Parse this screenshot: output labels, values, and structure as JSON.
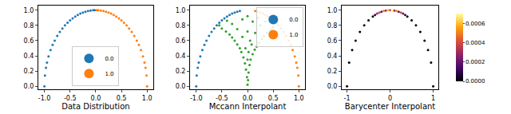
{
  "chart_data": [
    {
      "type": "scatter",
      "xlabel": "Data Distribution",
      "legend": "lower center",
      "xlim": [
        -1.12,
        1.12
      ],
      "ylim": [
        -0.04,
        1.06
      ],
      "xticks": [
        {
          "value": -1,
          "label": "-1.0"
        },
        {
          "value": -0.5,
          "label": "-0.5"
        },
        {
          "value": 0,
          "label": "0.0"
        },
        {
          "value": 0.5,
          "label": "0.5"
        },
        {
          "value": 1,
          "label": "1.0"
        }
      ],
      "yticks": [
        {
          "value": 0,
          "label": "0.0"
        },
        {
          "value": 0.2,
          "label": "0.2"
        },
        {
          "value": 0.4,
          "label": "0.4"
        },
        {
          "value": 0.6,
          "label": "0.6"
        },
        {
          "value": 0.8,
          "label": "0.8"
        },
        {
          "value": 1,
          "label": "1.0"
        }
      ],
      "series": [
        {
          "name": "0.0",
          "color": "#1f77b4",
          "x": [
            -1.0,
            -0.99,
            -0.97,
            -0.95,
            -0.92,
            -0.88,
            -0.84,
            -0.8,
            -0.75,
            -0.7,
            -0.65,
            -0.6,
            -0.55,
            -0.5,
            -0.45,
            -0.4,
            -0.35,
            -0.3,
            -0.25,
            -0.2,
            -0.15,
            -0.1,
            -0.05,
            -0.02
          ],
          "y": [
            0.0,
            0.141,
            0.243,
            0.312,
            0.392,
            0.475,
            0.543,
            0.6,
            0.661,
            0.714,
            0.76,
            0.8,
            0.835,
            0.866,
            0.893,
            0.917,
            0.937,
            0.954,
            0.968,
            0.98,
            0.989,
            0.995,
            0.999,
            1.0
          ]
        },
        {
          "name": "1.0",
          "color": "#ff7f0e",
          "x": [
            1.0,
            0.99,
            0.97,
            0.95,
            0.92,
            0.88,
            0.84,
            0.8,
            0.75,
            0.7,
            0.65,
            0.6,
            0.55,
            0.5,
            0.45,
            0.4,
            0.35,
            0.3,
            0.25,
            0.2,
            0.15,
            0.1,
            0.05,
            0.02
          ],
          "y": [
            0.0,
            0.141,
            0.243,
            0.312,
            0.392,
            0.475,
            0.543,
            0.6,
            0.661,
            0.714,
            0.76,
            0.8,
            0.835,
            0.866,
            0.893,
            0.917,
            0.937,
            0.954,
            0.968,
            0.98,
            0.989,
            0.995,
            0.999,
            1.0
          ]
        }
      ]
    },
    {
      "type": "scatter",
      "xlabel": "Mccann Interpolant",
      "legend": "upper right",
      "xlim": [
        -1.12,
        1.12
      ],
      "ylim": [
        -0.04,
        1.06
      ],
      "xticks": [
        {
          "value": -1,
          "label": "-1.0"
        },
        {
          "value": -0.5,
          "label": "-0.5"
        },
        {
          "value": 0,
          "label": "0.0"
        },
        {
          "value": 0.5,
          "label": "0.5"
        },
        {
          "value": 1,
          "label": "1.0"
        }
      ],
      "yticks": [
        {
          "value": 0,
          "label": "0.0"
        },
        {
          "value": 0.2,
          "label": "0.2"
        },
        {
          "value": 0.4,
          "label": "0.4"
        },
        {
          "value": 0.6,
          "label": "0.6"
        },
        {
          "value": 0.8,
          "label": "0.8"
        },
        {
          "value": 1,
          "label": "1.0"
        }
      ],
      "series": [
        {
          "name": "0.0",
          "color": "#1f77b4",
          "x": [
            -1.0,
            -0.99,
            -0.97,
            -0.95,
            -0.92,
            -0.88,
            -0.84,
            -0.8,
            -0.75,
            -0.7,
            -0.65,
            -0.6,
            -0.55,
            -0.5,
            -0.45,
            -0.4,
            -0.35,
            -0.3,
            -0.25,
            -0.2,
            -0.15
          ],
          "y": [
            0.0,
            0.141,
            0.243,
            0.312,
            0.392,
            0.475,
            0.543,
            0.6,
            0.661,
            0.714,
            0.76,
            0.8,
            0.835,
            0.866,
            0.893,
            0.917,
            0.937,
            0.954,
            0.968,
            0.98,
            0.989
          ]
        },
        {
          "name": "1.0",
          "color": "#ff7f0e",
          "x": [
            1.0,
            0.99,
            0.97,
            0.95,
            0.92,
            0.88,
            0.84,
            0.8,
            0.75,
            0.7,
            0.65,
            0.6,
            0.55,
            0.5,
            0.45,
            0.4,
            0.35,
            0.3,
            0.25,
            0.2,
            0.15
          ],
          "y": [
            0.0,
            0.141,
            0.243,
            0.312,
            0.392,
            0.475,
            0.543,
            0.6,
            0.661,
            0.714,
            0.76,
            0.8,
            0.835,
            0.866,
            0.893,
            0.917,
            0.937,
            0.954,
            0.968,
            0.98,
            0.989
          ]
        },
        {
          "color": "#2ca02c",
          "x": [
            0,
            0.01,
            -0.01,
            0.02,
            -0.03,
            0.04,
            -0.05,
            0.06,
            -0.08,
            0.1,
            -0.12,
            0.14,
            -0.15,
            0.18,
            -0.2,
            0.22,
            -0.25,
            0.28,
            -0.3,
            0.32,
            -0.35,
            0.38,
            -0.42,
            0.45,
            -0.5,
            0.5,
            -0.55,
            0.05,
            -0.1,
            0.15,
            0,
            -0.2,
            0.25,
            -0.3,
            0.35,
            0.1,
            -0.1,
            0,
            0.2,
            -0.4,
            0.45,
            0.02,
            -0.04,
            0.08,
            0
          ],
          "y": [
            0.02,
            0.08,
            0.12,
            0.18,
            0.22,
            0.28,
            0.3,
            0.35,
            0.38,
            0.42,
            0.45,
            0.48,
            0.5,
            0.52,
            0.55,
            0.57,
            0.6,
            0.62,
            0.64,
            0.66,
            0.68,
            0.7,
            0.72,
            0.74,
            0.76,
            0.78,
            0.8,
            0.6,
            0.65,
            0.7,
            0.72,
            0.75,
            0.8,
            0.82,
            0.85,
            0.85,
            0.88,
            0.92,
            0.9,
            0.86,
            0.88,
            0.45,
            0.5,
            0.55,
            0.35
          ]
        }
      ]
    },
    {
      "type": "scatter",
      "xlabel": "Barycenter Interpolant",
      "xlim": [
        -1.12,
        1.12
      ],
      "ylim": [
        -0.04,
        1.06
      ],
      "xticks": [
        -1,
        0,
        1
      ],
      "yticks": [
        {
          "value": 0,
          "label": "0.0"
        },
        {
          "value": 0.2,
          "label": "0.2"
        },
        {
          "value": 0.4,
          "label": "0.4"
        },
        {
          "value": 0.6,
          "label": "0.6"
        },
        {
          "value": 0.8,
          "label": "0.8"
        },
        {
          "value": 1,
          "label": "1.0"
        }
      ],
      "colorbar": {
        "range": [
          0,
          0.0007
        ],
        "ticks": [
          {
            "value": 0,
            "label": "0.0000"
          },
          {
            "value": 0.0002,
            "label": "0.0002"
          },
          {
            "value": 0.0004,
            "label": "0.0004"
          },
          {
            "value": 0.0006,
            "label": "0.0006"
          }
        ]
      },
      "series": [
        {
          "x": [
            -1.0,
            -0.95,
            -0.88,
            -0.8,
            -0.7,
            -0.6,
            -0.5,
            -0.4,
            -0.35,
            -0.3,
            -0.25,
            -0.2,
            -0.15,
            -0.1,
            -0.05,
            0,
            0.05,
            0.1,
            0.15,
            0.2,
            0.25,
            0.3,
            0.35,
            0.4,
            0.5,
            0.6,
            0.7,
            0.8,
            0.88,
            0.95,
            1.0
          ],
          "y": [
            0.0,
            0.312,
            0.475,
            0.6,
            0.714,
            0.8,
            0.866,
            0.917,
            0.937,
            0.954,
            0.968,
            0.98,
            0.989,
            0.995,
            0.999,
            1.0,
            0.999,
            0.995,
            0.989,
            0.98,
            0.968,
            0.954,
            0.937,
            0.917,
            0.866,
            0.8,
            0.714,
            0.6,
            0.475,
            0.312,
            0.0
          ],
          "values": [
            0,
            0,
            0,
            0,
            0,
            0,
            0,
            0,
            0.0001,
            0.0003,
            0.0004,
            0.0002,
            0.0005,
            0.0003,
            0.0006,
            0.0004,
            0.0007,
            0.0003,
            0.0005,
            0.0002,
            0.0004,
            0.0002,
            0.0001,
            0,
            0,
            0,
            0,
            0,
            0,
            0,
            0
          ]
        }
      ]
    }
  ]
}
